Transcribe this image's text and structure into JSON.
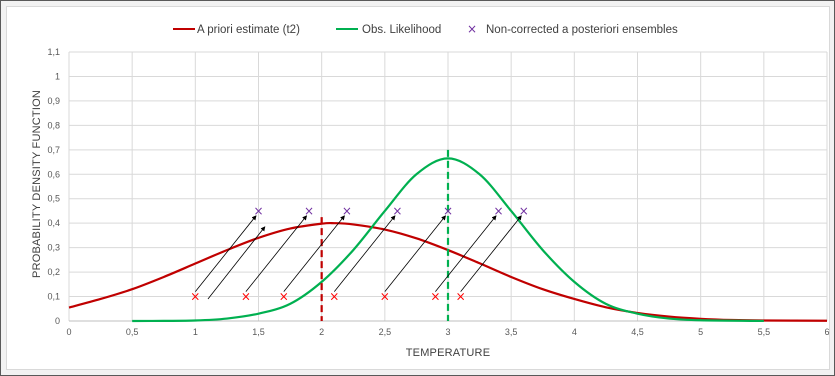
{
  "chart_data": {
    "type": "line",
    "title": "",
    "xlabel": "TEMPERATURE",
    "ylabel": "PROBABILITY DENSITY FUNCTION",
    "xlim": [
      0,
      6
    ],
    "ylim": [
      0,
      1.1
    ],
    "grid": true,
    "legend_position": "top",
    "x_ticks": [
      "0",
      "0,5",
      "1",
      "1,5",
      "2",
      "2,5",
      "3",
      "3,5",
      "4",
      "4,5",
      "5",
      "5,5",
      "6"
    ],
    "y_ticks": [
      "0",
      "0,1",
      "0,2",
      "0,3",
      "0,4",
      "0,5",
      "0,6",
      "0,7",
      "0,8",
      "0,9",
      "1",
      "1,1"
    ],
    "series": [
      {
        "name": "A priori estimate (t2)",
        "kind": "line",
        "color": "#c00000",
        "x": [
          0,
          0.25,
          0.5,
          0.75,
          1,
          1.25,
          1.5,
          1.75,
          2,
          2.1,
          2.25,
          2.5,
          2.75,
          3,
          3.25,
          3.5,
          3.75,
          4,
          4.25,
          4.5,
          4.75,
          5,
          5.25,
          5.5,
          6
        ],
        "y": [
          0.055,
          0.09,
          0.13,
          0.18,
          0.235,
          0.29,
          0.34,
          0.378,
          0.398,
          0.4,
          0.395,
          0.374,
          0.338,
          0.29,
          0.236,
          0.18,
          0.13,
          0.09,
          0.056,
          0.033,
          0.018,
          0.009,
          0.004,
          0.002,
          0.001
        ]
      },
      {
        "name": "Obs. Likelihood",
        "kind": "line",
        "color": "#00b050",
        "x": [
          0.5,
          0.75,
          1,
          1.25,
          1.5,
          1.75,
          2,
          2.25,
          2.5,
          2.75,
          3,
          3.25,
          3.5,
          3.75,
          4,
          4.25,
          4.5,
          4.75,
          5,
          5.5
        ],
        "y": [
          0,
          0.0005,
          0.002,
          0.01,
          0.03,
          0.07,
          0.16,
          0.29,
          0.45,
          0.6,
          0.665,
          0.6,
          0.45,
          0.29,
          0.16,
          0.07,
          0.03,
          0.01,
          0.003,
          0.0002
        ]
      },
      {
        "name": "Non-corrected a posteriori ensembles",
        "kind": "scatter",
        "marker": "x",
        "color": "#7030a0",
        "x": [
          1.5,
          1.9,
          2.2,
          2.6,
          3.0,
          3.4,
          3.6
        ],
        "y": [
          0.45,
          0.45,
          0.45,
          0.45,
          0.45,
          0.45,
          0.45
        ]
      }
    ],
    "prior_ensembles": {
      "marker": "x",
      "color": "#ff0000",
      "x": [
        1.0,
        1.4,
        1.7,
        2.1,
        2.5,
        2.9,
        3.1
      ],
      "y": [
        0.1,
        0.1,
        0.1,
        0.1,
        0.1,
        0.1,
        0.1
      ]
    },
    "arrows": [
      {
        "from": [
          1.0,
          0.12
        ],
        "to": [
          1.48,
          0.43
        ]
      },
      {
        "from": [
          1.1,
          0.09
        ],
        "to": [
          1.55,
          0.385
        ]
      },
      {
        "from": [
          1.4,
          0.12
        ],
        "to": [
          1.88,
          0.43
        ]
      },
      {
        "from": [
          1.7,
          0.12
        ],
        "to": [
          2.18,
          0.43
        ]
      },
      {
        "from": [
          2.1,
          0.12
        ],
        "to": [
          2.58,
          0.43
        ]
      },
      {
        "from": [
          2.5,
          0.12
        ],
        "to": [
          2.98,
          0.43
        ]
      },
      {
        "from": [
          2.9,
          0.12
        ],
        "to": [
          3.38,
          0.43
        ]
      },
      {
        "from": [
          3.1,
          0.12
        ],
        "to": [
          3.58,
          0.43
        ]
      }
    ],
    "vertical_lines": [
      {
        "x": 2.0,
        "color": "#c00000",
        "style": "dashed"
      },
      {
        "x": 3.0,
        "color": "#00b050",
        "style": "dashed"
      }
    ]
  }
}
